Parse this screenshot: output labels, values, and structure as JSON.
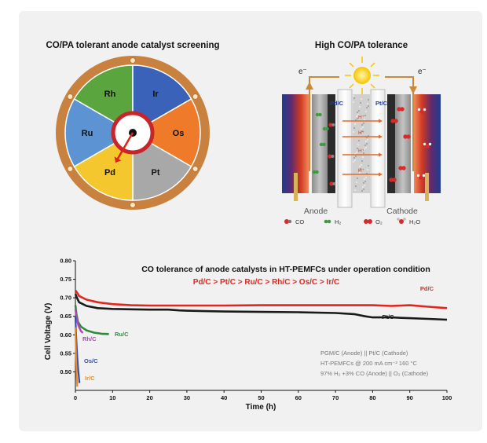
{
  "wheel_panel": {
    "title": "CO/PA tolerant anode catalyst screening",
    "segments": [
      {
        "label": "Rh",
        "color": "#5aa53e"
      },
      {
        "label": "Ir",
        "color": "#3a62b8"
      },
      {
        "label": "Os",
        "color": "#ee7a2a"
      },
      {
        "label": "Pt",
        "color": "#a8a8a8"
      },
      {
        "label": "Pd",
        "color": "#f5c72e"
      },
      {
        "label": "Ru",
        "color": "#5b93d3"
      }
    ],
    "ring_color": "#c8813f",
    "pointer_color": "#e0241b",
    "selected": "Pd"
  },
  "cell_panel": {
    "title": "High CO/PA tolerance",
    "electron_left": "e⁻",
    "electron_right": "e⁻",
    "anode_catalyst_label": "Pd/C",
    "cathode_catalyst_label": "Pt/C",
    "proton_label": "H⁺",
    "anode_label": "Anode",
    "cathode_label": "Cathode",
    "legend": [
      {
        "name": "co-molecule",
        "label": "CO"
      },
      {
        "name": "h2-molecule",
        "label": "H₂"
      },
      {
        "name": "o2-molecule",
        "label": "O₂"
      },
      {
        "name": "h2o-molecule",
        "label": "H₂O"
      }
    ]
  },
  "chart_data": {
    "type": "line",
    "title": "CO tolerance of anode catalysts in HT-PEMFCs under operation condition",
    "subtitle": "Pd/C > Pt/C > Ru/C > Rh/C > Os/C > Ir/C",
    "xlabel": "Time (h)",
    "ylabel": "Cell Voltage (V)",
    "xlim": [
      0,
      100
    ],
    "ylim": [
      0.45,
      0.8
    ],
    "xticks": [
      0,
      10,
      20,
      30,
      40,
      50,
      60,
      70,
      80,
      90,
      100
    ],
    "yticks": [
      0.5,
      0.55,
      0.6,
      0.65,
      0.7,
      0.75,
      0.8
    ],
    "xtick_labels": [
      "0",
      "10",
      "20",
      "30",
      "40",
      "50",
      "60",
      "70",
      "80",
      "90",
      "100"
    ],
    "ytick_labels": [
      "0.50",
      "0.55",
      "0.60",
      "0.65",
      "0.70",
      "0.75",
      "0.80"
    ],
    "series": [
      {
        "name": "Pd/C",
        "color": "#e3261d",
        "x": [
          0,
          0.5,
          1,
          3,
          6,
          10,
          15,
          20,
          30,
          40,
          50,
          60,
          70,
          80,
          85,
          90,
          95,
          100
        ],
        "y": [
          0.72,
          0.713,
          0.705,
          0.695,
          0.688,
          0.683,
          0.68,
          0.679,
          0.679,
          0.679,
          0.68,
          0.68,
          0.68,
          0.68,
          0.678,
          0.68,
          0.676,
          0.672
        ]
      },
      {
        "name": "Pt/C",
        "color": "#1a1a1a",
        "x": [
          0,
          0.5,
          1,
          3,
          6,
          10,
          15,
          20,
          25,
          28,
          30,
          40,
          50,
          60,
          70,
          75,
          78,
          80,
          85,
          90,
          95,
          100
        ],
        "y": [
          0.71,
          0.698,
          0.688,
          0.678,
          0.672,
          0.67,
          0.669,
          0.668,
          0.668,
          0.666,
          0.665,
          0.663,
          0.662,
          0.661,
          0.659,
          0.656,
          0.65,
          0.647,
          0.647,
          0.645,
          0.643,
          0.641
        ]
      },
      {
        "name": "Ru/C",
        "color": "#2e8b3a",
        "x": [
          0,
          0.3,
          0.7,
          1.5,
          3,
          5,
          7,
          9
        ],
        "y": [
          0.68,
          0.655,
          0.635,
          0.622,
          0.612,
          0.606,
          0.603,
          0.602
        ]
      },
      {
        "name": "Rh/C",
        "color": "#b844b4",
        "x": [
          0,
          0.3,
          0.8,
          1.5,
          2
        ],
        "y": [
          0.67,
          0.645,
          0.625,
          0.61,
          0.605
        ]
      },
      {
        "name": "Os/C",
        "color": "#2f4fb8",
        "x": [
          0,
          0.2,
          0.5,
          0.8,
          1.1
        ],
        "y": [
          0.65,
          0.6,
          0.54,
          0.5,
          0.47
        ]
      },
      {
        "name": "Ir/C",
        "color": "#f08a1c",
        "x": [
          0,
          0.15,
          0.3,
          0.5
        ],
        "y": [
          0.62,
          0.55,
          0.5,
          0.46
        ]
      }
    ],
    "annotations": [
      "PGM/C (Anode) || Pt/C (Cathode)",
      "HT-PEMFCs @ 200 mA cm⁻²  160 °C",
      "97% H₂ +3% CO (Anode) || O₂ (Cathode)"
    ]
  }
}
